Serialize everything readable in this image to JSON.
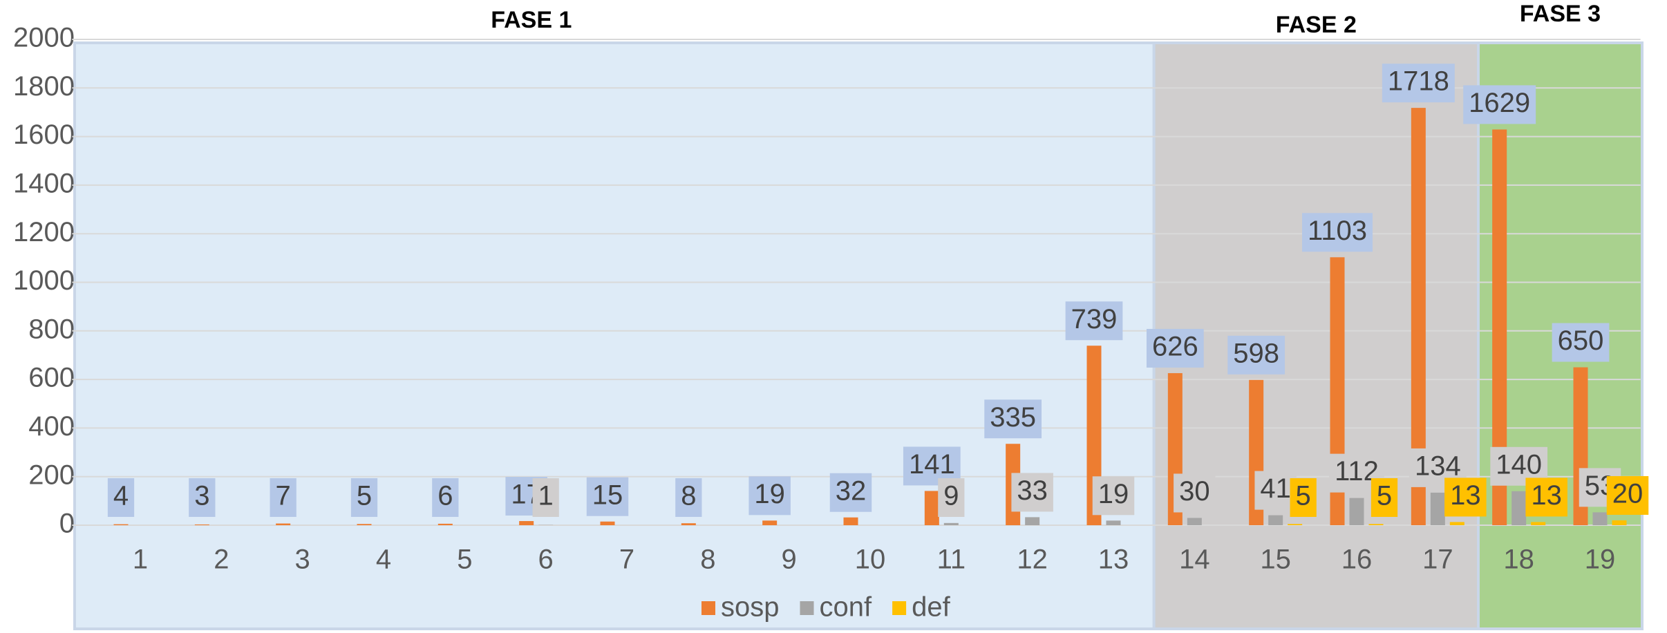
{
  "chart_data": {
    "type": "bar",
    "categories": [
      "1",
      "2",
      "3",
      "4",
      "5",
      "6",
      "7",
      "8",
      "9",
      "10",
      "11",
      "12",
      "13",
      "14",
      "15",
      "16",
      "17",
      "18",
      "19"
    ],
    "series": [
      {
        "name": "sosp",
        "color": "#ed7d31",
        "label_color": "#b4c7e7",
        "values": [
          4,
          3,
          7,
          5,
          6,
          17,
          15,
          8,
          19,
          32,
          141,
          335,
          739,
          626,
          598,
          1103,
          1718,
          1629,
          650
        ]
      },
      {
        "name": "conf",
        "color": "#a5a5a5",
        "label_color": "#d0cece",
        "values": [
          null,
          null,
          null,
          null,
          null,
          1,
          null,
          null,
          null,
          null,
          9,
          33,
          19,
          30,
          41,
          112,
          134,
          140,
          53
        ]
      },
      {
        "name": "def",
        "color": "#ffc000",
        "label_color": "#ffc000",
        "values": [
          null,
          null,
          null,
          null,
          null,
          null,
          null,
          null,
          null,
          null,
          null,
          null,
          null,
          null,
          5,
          5,
          13,
          13,
          20
        ]
      }
    ],
    "phases": [
      {
        "label": "FASE 1",
        "start": "1",
        "end": "13",
        "color": "#deebf7"
      },
      {
        "label": "FASE 2",
        "start": "14",
        "end": "17",
        "color": "#d0cece"
      },
      {
        "label": "FASE 3",
        "start": "18",
        "end": "19",
        "color": "#a9d18e"
      }
    ],
    "ylim": [
      0,
      2000
    ],
    "yticks": [
      0,
      200,
      400,
      600,
      800,
      1000,
      1200,
      1400,
      1600,
      1800,
      2000
    ],
    "grid": true
  }
}
